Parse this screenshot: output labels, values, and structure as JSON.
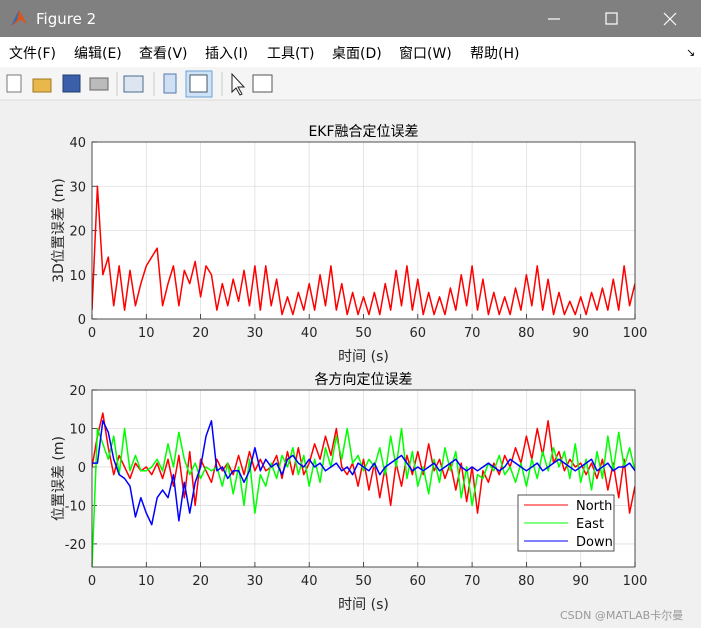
{
  "window": {
    "title": "Figure 2",
    "menu": [
      "文件(F)",
      "编辑(E)",
      "查看(V)",
      "插入(I)",
      "工具(T)",
      "桌面(D)",
      "窗口(W)",
      "帮助(H)"
    ]
  },
  "watermark": "CSDN @MATLAB卡尔曼",
  "chart_data": [
    {
      "type": "line",
      "title": "EKF融合定位误差",
      "xlabel": "时间 (s)",
      "ylabel": "3D位置误差 (m)",
      "x": [
        0,
        1,
        2,
        3,
        4,
        5,
        6,
        7,
        8,
        9,
        10,
        11,
        12,
        13,
        14,
        15,
        16,
        17,
        18,
        19,
        20,
        21,
        22,
        23,
        24,
        25,
        26,
        27,
        28,
        29,
        30,
        31,
        32,
        33,
        34,
        35,
        36,
        37,
        38,
        39,
        40,
        41,
        42,
        43,
        44,
        45,
        46,
        47,
        48,
        49,
        50,
        51,
        52,
        53,
        54,
        55,
        56,
        57,
        58,
        59,
        60,
        61,
        62,
        63,
        64,
        65,
        66,
        67,
        68,
        69,
        70,
        71,
        72,
        73,
        74,
        75,
        76,
        77,
        78,
        79,
        80,
        81,
        82,
        83,
        84,
        85,
        86,
        87,
        88,
        89,
        90,
        91,
        92,
        93,
        94,
        95,
        96,
        97,
        98,
        99,
        100
      ],
      "xlim": [
        0,
        100
      ],
      "ylim": [
        0,
        40
      ],
      "xticks": [
        0,
        10,
        20,
        30,
        40,
        50,
        60,
        70,
        80,
        90,
        100
      ],
      "yticks": [
        0,
        10,
        20,
        30,
        40
      ],
      "grid": true,
      "series": [
        {
          "color": "#ff0000",
          "values": [
            2,
            30,
            10,
            14,
            3,
            12,
            2,
            11,
            3,
            8,
            12,
            14,
            16,
            3,
            8,
            12,
            3,
            11,
            8,
            13,
            5,
            12,
            10,
            2,
            8,
            3,
            9,
            4,
            11,
            3,
            12,
            2,
            12,
            3,
            9,
            1,
            5,
            1,
            6,
            2,
            8,
            2,
            10,
            3,
            12,
            2,
            8,
            1,
            6,
            1,
            5,
            1,
            6,
            1,
            8,
            2,
            11,
            3,
            12,
            2,
            9,
            1,
            6,
            1,
            5,
            1,
            7,
            2,
            10,
            3,
            12,
            2,
            9,
            1,
            6,
            1,
            5,
            1,
            7,
            2,
            10,
            3,
            12,
            2,
            9,
            1,
            6,
            1,
            4,
            1,
            5,
            1,
            6,
            2,
            7,
            2,
            9,
            2,
            12,
            3,
            8
          ]
        }
      ]
    },
    {
      "type": "line",
      "title": "各方向定位误差",
      "xlabel": "时间 (s)",
      "ylabel": "位置误差 (m)",
      "x": [
        0,
        1,
        2,
        3,
        4,
        5,
        6,
        7,
        8,
        9,
        10,
        11,
        12,
        13,
        14,
        15,
        16,
        17,
        18,
        19,
        20,
        21,
        22,
        23,
        24,
        25,
        26,
        27,
        28,
        29,
        30,
        31,
        32,
        33,
        34,
        35,
        36,
        37,
        38,
        39,
        40,
        41,
        42,
        43,
        44,
        45,
        46,
        47,
        48,
        49,
        50,
        51,
        52,
        53,
        54,
        55,
        56,
        57,
        58,
        59,
        60,
        61,
        62,
        63,
        64,
        65,
        66,
        67,
        68,
        69,
        70,
        71,
        72,
        73,
        74,
        75,
        76,
        77,
        78,
        79,
        80,
        81,
        82,
        83,
        84,
        85,
        86,
        87,
        88,
        89,
        90,
        91,
        92,
        93,
        94,
        95,
        96,
        97,
        98,
        99,
        100
      ],
      "xlim": [
        0,
        100
      ],
      "ylim": [
        -26,
        20
      ],
      "xticks": [
        0,
        10,
        20,
        30,
        40,
        50,
        60,
        70,
        80,
        90,
        100
      ],
      "yticks": [
        -20,
        -10,
        0,
        10,
        20
      ],
      "grid": true,
      "legend": "lower right",
      "series": [
        {
          "name": "North",
          "color": "#ff0000",
          "values": [
            0,
            8,
            14,
            5,
            -2,
            3,
            0,
            -3,
            1,
            -1,
            0,
            -2,
            1,
            -3,
            2,
            -5,
            3,
            -8,
            4,
            -10,
            2,
            -1,
            -4,
            2,
            -1,
            1,
            -2,
            3,
            -2,
            4,
            -1,
            2,
            -1,
            0,
            3,
            -3,
            4,
            -2,
            5,
            -2,
            1,
            6,
            2,
            8,
            3,
            10,
            0,
            -2,
            1,
            -5,
            2,
            -6,
            1,
            -8,
            0,
            -10,
            1,
            -5,
            3,
            -2,
            4,
            -2,
            6,
            -1,
            2,
            -3,
            1,
            -6,
            1,
            -9,
            0,
            -12,
            -1,
            -4,
            1,
            -2,
            3,
            0,
            5,
            1,
            8,
            2,
            10,
            3,
            12,
            1,
            4,
            -1,
            2,
            0,
            1,
            -2,
            1,
            -3,
            2,
            -6,
            1,
            -8,
            2,
            -12,
            -5
          ]
        },
        {
          "name": "East",
          "color": "#00ff00",
          "values": [
            -26,
            10,
            6,
            2,
            8,
            -2,
            10,
            -1,
            3,
            -1,
            -1,
            0,
            2,
            -1,
            6,
            0,
            9,
            2,
            -2,
            1,
            -3,
            0,
            -1,
            0,
            -5,
            1,
            -7,
            0,
            -10,
            2,
            -12,
            -2,
            -5,
            1,
            -3,
            3,
            0,
            5,
            -2,
            3,
            -5,
            2,
            -4,
            5,
            0,
            8,
            2,
            10,
            1,
            3,
            -1,
            2,
            0,
            5,
            -2,
            8,
            0,
            10,
            -3,
            4,
            -5,
            0,
            -7,
            2,
            -4,
            5,
            -1,
            4,
            -8,
            0,
            -10,
            -2,
            -3,
            1,
            -1,
            3,
            -2,
            0,
            -4,
            1,
            -5,
            2,
            -3,
            4,
            -1,
            5,
            0,
            4,
            -3,
            6,
            -4,
            2,
            -6,
            4,
            -3,
            8,
            -1,
            9,
            0,
            5,
            -1
          ]
        },
        {
          "name": "Down",
          "color": "#0000ff",
          "values": [
            1,
            1,
            12,
            9,
            2,
            -2,
            -3,
            -5,
            -13,
            -8,
            -12,
            -15,
            -8,
            -6,
            -8,
            -2,
            -14,
            -4,
            -12,
            -4,
            0,
            8,
            12,
            -1,
            0,
            -3,
            -1,
            -1,
            -4,
            -1,
            5,
            -1,
            2,
            0,
            1,
            -2,
            2,
            3,
            1,
            0,
            2,
            0,
            1,
            -1,
            0,
            1,
            -1,
            0,
            -2,
            1,
            0,
            -1,
            1,
            -2,
            0,
            1,
            2,
            3,
            1,
            -1,
            0,
            -1,
            0,
            1,
            -1,
            0,
            1,
            2,
            0,
            -1,
            0,
            -1,
            0,
            1,
            0,
            -1,
            0,
            2,
            1,
            0,
            -1,
            0,
            1,
            -1,
            0,
            1,
            2,
            1,
            0,
            -1,
            0,
            1,
            2,
            -1,
            0,
            1,
            -1,
            0,
            0,
            1,
            -1
          ]
        }
      ]
    }
  ]
}
